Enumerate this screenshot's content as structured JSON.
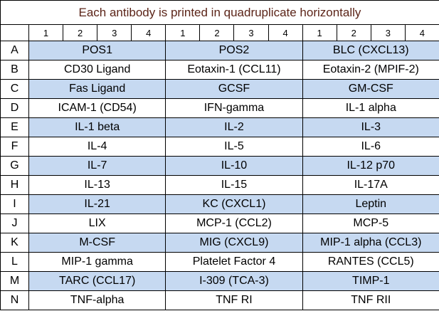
{
  "header": {
    "title": "Each antibody is printed in quadruplicate horizontally"
  },
  "table": {
    "column_numbers": [
      1,
      2,
      3,
      4,
      1,
      2,
      3,
      4,
      1,
      2,
      3,
      4
    ],
    "rows": [
      {
        "label": "A",
        "cells": [
          "POS1",
          "POS2",
          "BLC (CXCL13)"
        ]
      },
      {
        "label": "B",
        "cells": [
          "CD30 Ligand",
          "Eotaxin-1 (CCL11)",
          "Eotaxin-2 (MPIF-2)"
        ]
      },
      {
        "label": "C",
        "cells": [
          "Fas Ligand",
          "GCSF",
          "GM-CSF"
        ]
      },
      {
        "label": "D",
        "cells": [
          "ICAM-1 (CD54)",
          "IFN-gamma",
          "IL-1 alpha"
        ]
      },
      {
        "label": "E",
        "cells": [
          "IL-1 beta",
          "IL-2",
          "IL-3"
        ]
      },
      {
        "label": "F",
        "cells": [
          "IL-4",
          "IL-5",
          "IL-6"
        ]
      },
      {
        "label": "G",
        "cells": [
          "IL-7",
          "IL-10",
          "IL-12 p70"
        ]
      },
      {
        "label": "H",
        "cells": [
          "IL-13",
          "IL-15",
          "IL-17A"
        ]
      },
      {
        "label": "I",
        "cells": [
          "IL-21",
          "KC (CXCL1)",
          "Leptin"
        ]
      },
      {
        "label": "J",
        "cells": [
          "LIX",
          "MCP-1 (CCL2)",
          "MCP-5"
        ]
      },
      {
        "label": "K",
        "cells": [
          "M-CSF",
          "MIG (CXCL9)",
          "MIP-1 alpha (CCL3)"
        ]
      },
      {
        "label": "L",
        "cells": [
          "MIP-1 gamma",
          "Platelet Factor 4",
          "RANTES (CCL5)"
        ]
      },
      {
        "label": "M",
        "cells": [
          "TARC (CCL17)",
          "I-309 (TCA-3)",
          "TIMP-1"
        ]
      },
      {
        "label": "N",
        "cells": [
          "TNF-alpha",
          "TNF RI",
          "TNF RII"
        ]
      }
    ]
  }
}
